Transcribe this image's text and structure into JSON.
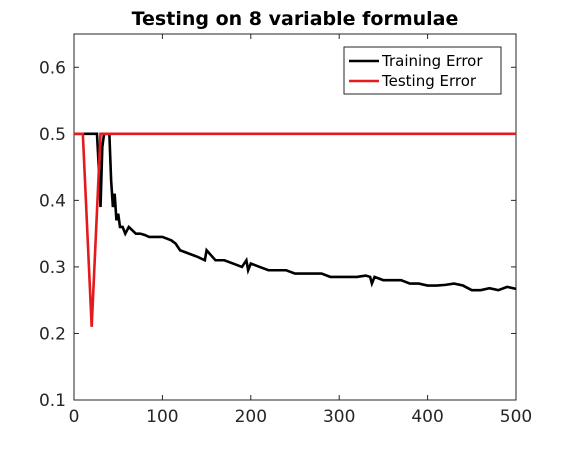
{
  "chart_data": {
    "type": "line",
    "title": "Testing on 8 variable formulae",
    "xlabel": "",
    "ylabel": "",
    "xlim": [
      0,
      500
    ],
    "ylim": [
      0.1,
      0.65
    ],
    "xticks": [
      0,
      100,
      200,
      300,
      400,
      500
    ],
    "yticks": [
      0.1,
      0.2,
      0.3,
      0.4,
      0.5,
      0.6
    ],
    "grid": false,
    "legend": {
      "position": "top-right",
      "entries": [
        "Training Error",
        "Testing Error"
      ]
    },
    "series": [
      {
        "name": "Training Error",
        "color": "#000000",
        "x": [
          0,
          20,
          26,
          28,
          30,
          32,
          34,
          36,
          40,
          42,
          44,
          46,
          48,
          50,
          52,
          55,
          58,
          62,
          66,
          70,
          75,
          80,
          85,
          90,
          95,
          100,
          110,
          115,
          120,
          130,
          140,
          148,
          150,
          160,
          170,
          180,
          190,
          195,
          197,
          200,
          210,
          220,
          230,
          240,
          250,
          260,
          270,
          280,
          290,
          300,
          310,
          320,
          330,
          335,
          337,
          340,
          350,
          360,
          370,
          380,
          390,
          400,
          410,
          420,
          430,
          440,
          450,
          460,
          470,
          480,
          490,
          500
        ],
        "y": [
          0.5,
          0.5,
          0.5,
          0.45,
          0.39,
          0.48,
          0.5,
          0.5,
          0.5,
          0.43,
          0.39,
          0.41,
          0.37,
          0.38,
          0.36,
          0.36,
          0.35,
          0.36,
          0.355,
          0.35,
          0.35,
          0.348,
          0.345,
          0.345,
          0.345,
          0.345,
          0.34,
          0.335,
          0.325,
          0.32,
          0.315,
          0.31,
          0.325,
          0.31,
          0.31,
          0.305,
          0.3,
          0.31,
          0.295,
          0.305,
          0.3,
          0.295,
          0.295,
          0.295,
          0.29,
          0.29,
          0.29,
          0.29,
          0.285,
          0.285,
          0.285,
          0.285,
          0.287,
          0.285,
          0.275,
          0.285,
          0.28,
          0.28,
          0.28,
          0.275,
          0.275,
          0.272,
          0.272,
          0.273,
          0.275,
          0.272,
          0.265,
          0.265,
          0.268,
          0.265,
          0.27,
          0.267
        ]
      },
      {
        "name": "Testing Error",
        "color": "#e41a1c",
        "x": [
          0,
          10,
          20,
          30,
          40,
          500
        ],
        "y": [
          0.5,
          0.5,
          0.21,
          0.5,
          0.5,
          0.5
        ]
      }
    ]
  }
}
